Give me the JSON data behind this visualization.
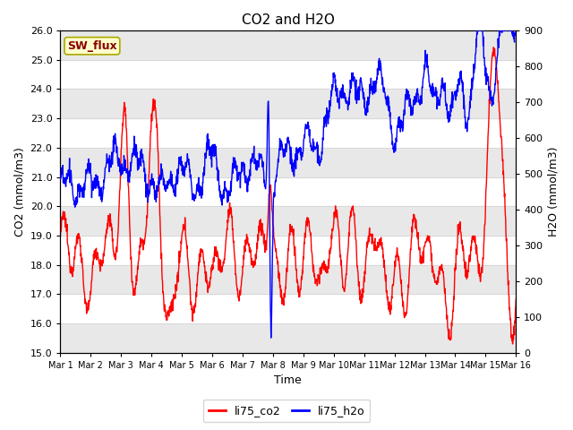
{
  "title": "CO2 and H2O",
  "xlabel": "Time",
  "ylabel_left": "CO2 (mmol/m3)",
  "ylabel_right": "H2O (mmol/m3)",
  "ylim_left": [
    15.0,
    26.0
  ],
  "ylim_right": [
    0,
    900
  ],
  "yticks_left": [
    15.0,
    16.0,
    17.0,
    18.0,
    19.0,
    20.0,
    21.0,
    22.0,
    23.0,
    24.0,
    25.0,
    26.0
  ],
  "yticks_right": [
    0,
    100,
    200,
    300,
    400,
    500,
    600,
    700,
    800,
    900
  ],
  "co2_color": "#FF0000",
  "h2o_color": "#0000FF",
  "legend_co2": "li75_co2",
  "legend_h2o": "li75_h2o",
  "annotation_text": "SW_flux",
  "annotation_facecolor": "#FFFFCC",
  "annotation_edgecolor": "#AAAA00",
  "annotation_textcolor": "#880000",
  "background_color": "#FFFFFF",
  "band_color": "#E8E8E8",
  "title_fontsize": 11,
  "axis_label_fontsize": 9,
  "tick_fontsize": 8,
  "xtick_fontsize": 7,
  "legend_fontsize": 9,
  "line_width": 1.0
}
